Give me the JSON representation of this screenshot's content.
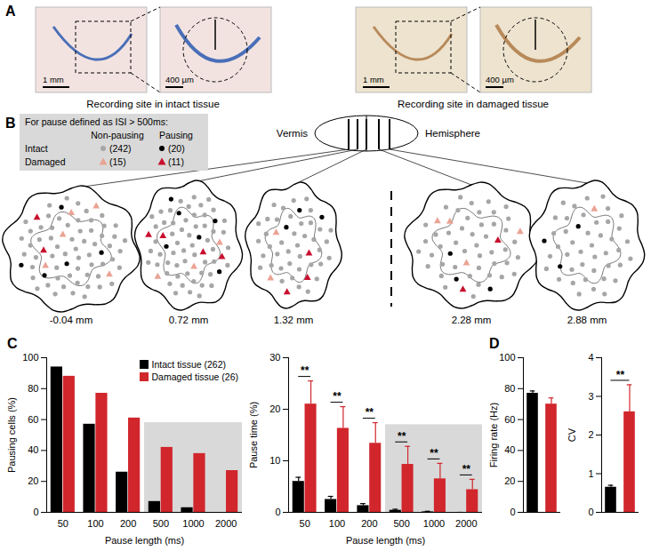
{
  "panel_a": {
    "label": "A",
    "images": [
      {
        "scale_bar": "1 mm"
      },
      {
        "scale_bar": "400 µm"
      },
      {
        "scale_bar": "1 mm"
      },
      {
        "scale_bar": "400 µm"
      }
    ],
    "captions": [
      "Recording site in intact tissue",
      "Recording site in damaged tissue"
    ]
  },
  "panel_b": {
    "label": "B",
    "legend": {
      "title": "For pause defined as ISI > 500ms:",
      "columns": [
        "Non-pausing",
        "Pausing"
      ],
      "rows": [
        {
          "name": "Intact",
          "marker": "circle",
          "colors": [
            "#a6a6a6",
            "#000000"
          ],
          "labels": [
            "(242)",
            "(20)"
          ]
        },
        {
          "name": "Damaged",
          "marker": "triangle",
          "colors": [
            "#eaa394",
            "#c8102e"
          ],
          "labels": [
            "(15)",
            "(11)"
          ]
        }
      ]
    },
    "regions": [
      "Vermis",
      "Hemisphere"
    ],
    "sections": [
      {
        "label": "-0.04 mm",
        "counts": [
          [
            60,
            5
          ],
          [
            5,
            2
          ]
        ]
      },
      {
        "label": "0.72 mm",
        "counts": [
          [
            55,
            6
          ],
          [
            3,
            4
          ]
        ]
      },
      {
        "label": "1.32 mm",
        "counts": [
          [
            40,
            3
          ],
          [
            2,
            3
          ]
        ]
      },
      {
        "label": "2.28 mm",
        "counts": [
          [
            45,
            3
          ],
          [
            4,
            2
          ]
        ]
      },
      {
        "label": "2.88 mm",
        "counts": [
          [
            42,
            3
          ],
          [
            1,
            0
          ]
        ]
      }
    ]
  },
  "chart_data": [
    {
      "panel_label": "C",
      "type": "bar",
      "x_label": "Pause length (ms)",
      "y_label": "Pausing cells (%)",
      "categories": [
        50,
        100,
        200,
        500,
        1000,
        2000
      ],
      "series": [
        {
          "name": "Intact tissue (262)",
          "color": "#000000",
          "values": [
            94,
            57,
            26,
            7,
            3,
            0
          ]
        },
        {
          "name": "Damaged tissue (26)",
          "color": "#d0262c",
          "values": [
            88,
            77,
            61,
            42,
            38,
            27
          ]
        }
      ],
      "ylim": [
        0,
        100
      ],
      "yticks": [
        0,
        20,
        40,
        60,
        80,
        100
      ],
      "legend": "top-right",
      "shaded_categories": [
        500,
        1000,
        2000
      ],
      "shade_top": 58
    },
    {
      "type": "bar",
      "x_label": "Pause length (ms)",
      "y_label": "Pause time (%)",
      "categories": [
        50,
        100,
        200,
        500,
        1000,
        2000
      ],
      "series": [
        {
          "name": "Intact tissue (262)",
          "color": "#000000",
          "values": [
            6,
            2.5,
            1.3,
            0.4,
            0.1,
            0
          ],
          "errors": [
            0.8,
            0.6,
            0.4,
            0.2,
            0.1,
            0
          ]
        },
        {
          "name": "Damaged tissue (26)",
          "color": "#d0262c",
          "values": [
            21,
            16.3,
            13.4,
            9.3,
            6.5,
            4.4
          ],
          "errors": [
            4.5,
            4.2,
            4,
            3.5,
            3,
            2
          ]
        }
      ],
      "ylim": [
        0,
        30
      ],
      "yticks": [
        0,
        10,
        20,
        30
      ],
      "shaded_categories": [
        500,
        1000,
        2000
      ],
      "shade_top": 17,
      "annotations": [
        {
          "text": "**",
          "category": 50
        },
        {
          "text": "**",
          "category": 100
        },
        {
          "text": "**",
          "category": 200
        },
        {
          "text": "**",
          "category": 500
        },
        {
          "text": "**",
          "category": 1000
        },
        {
          "text": "**",
          "category": 2000
        }
      ]
    },
    {
      "panel_label": "D",
      "type": "bar",
      "y_label": "Firing rate (Hz)",
      "categories": [
        null,
        null
      ],
      "values": [
        77,
        70
      ],
      "errors": [
        1.5,
        4
      ],
      "colors": [
        "#000000",
        "#d0262c"
      ],
      "ylim": [
        0,
        100
      ],
      "yticks": [
        0,
        20,
        40,
        60,
        80,
        100
      ]
    },
    {
      "type": "bar",
      "y_label": "CV",
      "categories": [
        null,
        null
      ],
      "values": [
        0.65,
        2.6
      ],
      "errors": [
        0.05,
        0.7
      ],
      "colors": [
        "#000000",
        "#d0262c"
      ],
      "ylim": [
        0,
        4
      ],
      "yticks": [
        0,
        1,
        2,
        3,
        4
      ],
      "annotations": [
        {
          "text": "**",
          "positions": [
            0,
            1
          ]
        }
      ]
    }
  ]
}
